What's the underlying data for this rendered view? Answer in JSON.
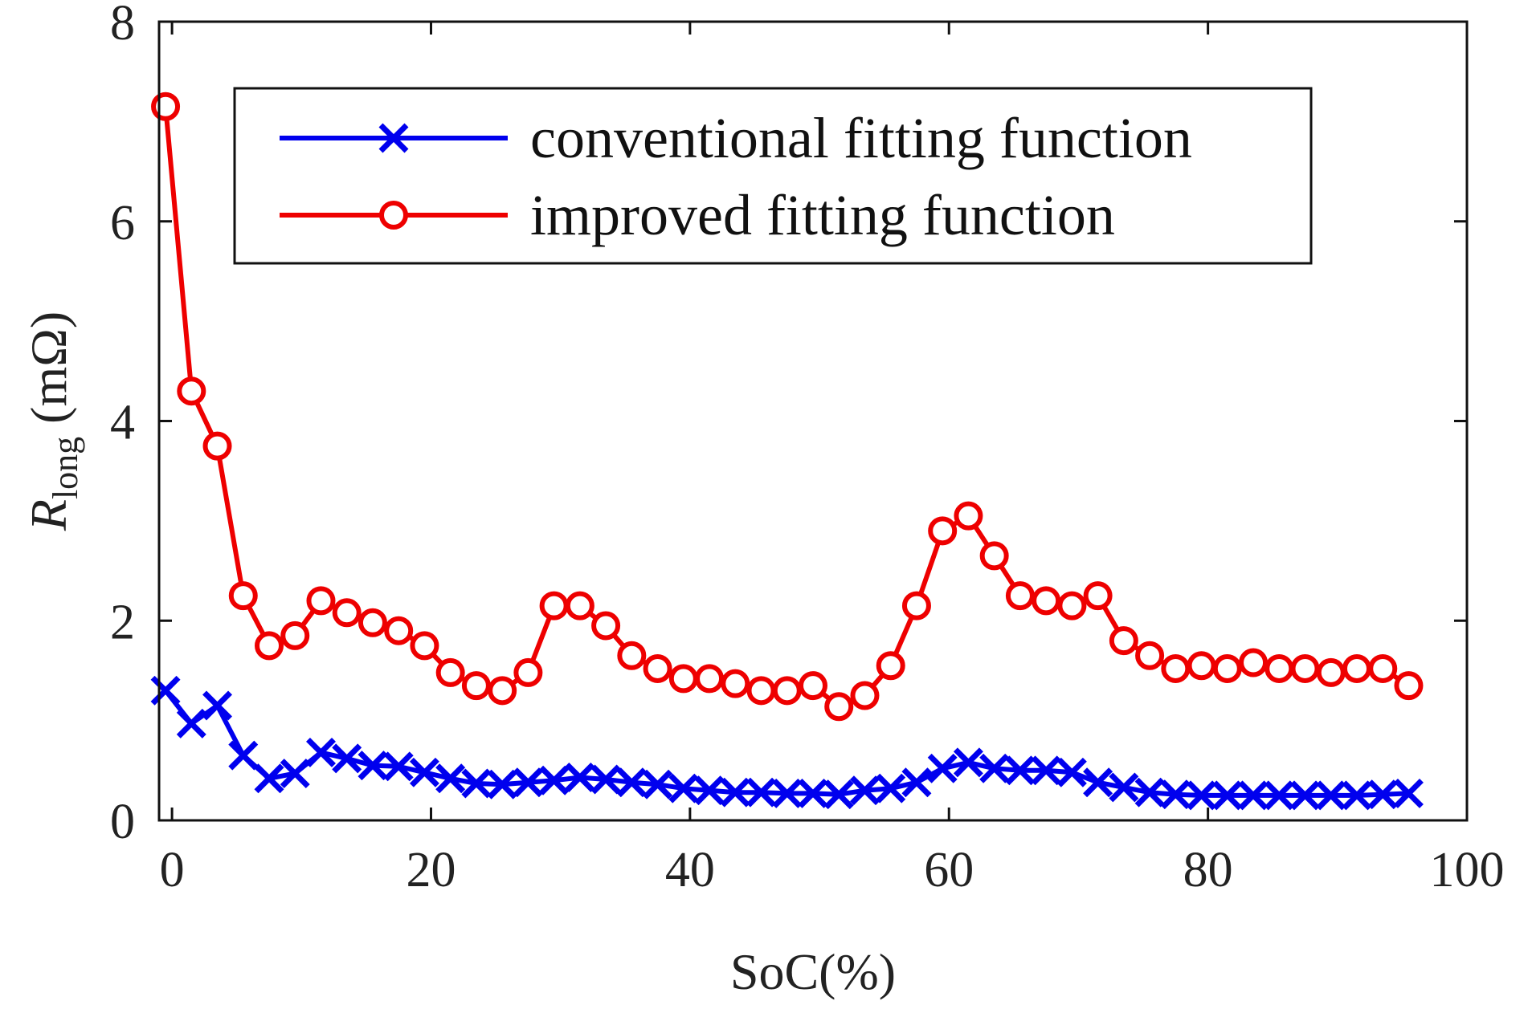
{
  "chart_data": {
    "type": "line",
    "title": "",
    "xlabel": "SoC(%)",
    "ylabel": {
      "symbol": "R",
      "subscript": "long",
      "unit": " (mΩ)"
    },
    "xlim": [
      -1,
      100
    ],
    "ylim": [
      0,
      8
    ],
    "xticks": [
      0,
      20,
      40,
      60,
      80,
      100
    ],
    "yticks": [
      0,
      2,
      4,
      6,
      8
    ],
    "xtick_labels": [
      "0",
      "20",
      "40",
      "60",
      "80",
      "100"
    ],
    "ytick_labels": [
      "0",
      "2",
      "4",
      "6",
      "8"
    ],
    "grid": false,
    "legend_position": "top-center",
    "x": [
      -0.5,
      1.5,
      3.5,
      5.5,
      7.5,
      9.5,
      11.5,
      13.5,
      15.5,
      17.5,
      19.5,
      21.5,
      23.5,
      25.5,
      27.5,
      29.5,
      31.5,
      33.5,
      35.5,
      37.5,
      39.5,
      41.5,
      43.5,
      45.5,
      47.5,
      49.5,
      51.5,
      53.5,
      55.5,
      57.5,
      59.5,
      61.5,
      63.5,
      65.5,
      67.5,
      69.5,
      71.5,
      73.5,
      75.5,
      77.5,
      79.5,
      81.5,
      83.5,
      85.5,
      87.5,
      89.5,
      91.5,
      93.5,
      95.5
    ],
    "series": [
      {
        "name": "conventional fitting function",
        "color": "#0000ee",
        "marker": "x",
        "values": [
          1.3,
          0.97,
          1.15,
          0.65,
          0.42,
          0.47,
          0.68,
          0.62,
          0.55,
          0.54,
          0.48,
          0.42,
          0.37,
          0.36,
          0.38,
          0.4,
          0.43,
          0.41,
          0.38,
          0.36,
          0.32,
          0.3,
          0.28,
          0.28,
          0.27,
          0.27,
          0.26,
          0.3,
          0.32,
          0.38,
          0.52,
          0.58,
          0.52,
          0.5,
          0.5,
          0.48,
          0.38,
          0.33,
          0.28,
          0.26,
          0.25,
          0.25,
          0.25,
          0.25,
          0.25,
          0.25,
          0.25,
          0.26,
          0.27
        ]
      },
      {
        "name": "improved fitting function",
        "color": "#ee0000",
        "marker": "o",
        "values": [
          7.15,
          4.3,
          3.75,
          2.25,
          1.75,
          1.85,
          2.2,
          2.08,
          1.98,
          1.9,
          1.75,
          1.48,
          1.35,
          1.3,
          1.48,
          2.15,
          2.15,
          1.95,
          1.65,
          1.52,
          1.42,
          1.42,
          1.37,
          1.3,
          1.3,
          1.35,
          1.14,
          1.25,
          1.55,
          2.15,
          2.9,
          3.05,
          2.65,
          2.25,
          2.2,
          2.15,
          2.25,
          1.8,
          1.65,
          1.52,
          1.55,
          1.52,
          1.58,
          1.52,
          1.52,
          1.48,
          1.52,
          1.52,
          1.35
        ]
      }
    ]
  }
}
